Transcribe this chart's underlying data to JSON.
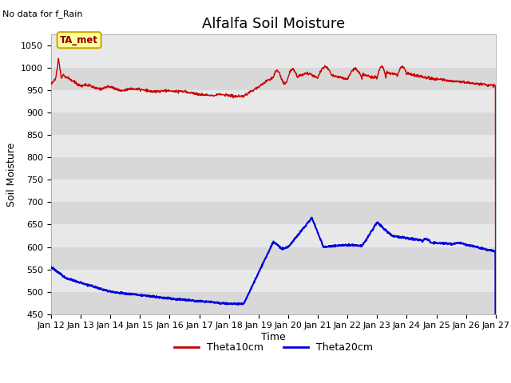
{
  "title": "Alfalfa Soil Moisture",
  "top_left_text": "No data for f_Rain",
  "ylabel": "Soil Moisture",
  "xlabel": "Time",
  "ylim": [
    450,
    1075
  ],
  "yticks": [
    450,
    500,
    550,
    600,
    650,
    700,
    750,
    800,
    850,
    900,
    950,
    1000,
    1050
  ],
  "xtick_labels": [
    "Jan 12",
    "Jan 13",
    "Jan 14",
    "Jan 15",
    "Jan 16",
    "Jan 17",
    "Jan 18",
    "Jan 19",
    "Jan 20",
    "Jan 21",
    "Jan 22",
    "Jan 23",
    "Jan 24",
    "Jan 25",
    "Jan 26",
    "Jan 27"
  ],
  "legend_labels": [
    "Theta10cm",
    "Theta20cm"
  ],
  "annotation_box_text": "TA_met",
  "annotation_box_color": "#ffff99",
  "annotation_box_edge": "#ccaa00",
  "background_color": "#e8e8e8",
  "band_color": "#d8d8d8",
  "title_fontsize": 13,
  "label_fontsize": 9,
  "tick_fontsize": 8,
  "red_color": "#cc0000",
  "blue_color": "#0000dd"
}
